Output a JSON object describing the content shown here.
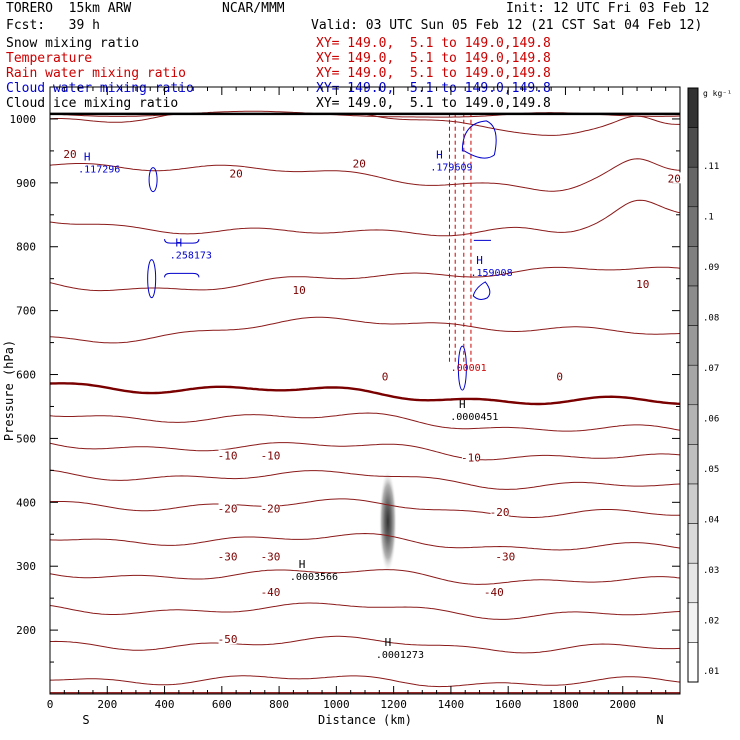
{
  "header": {
    "model": "TORERO  15km ARW",
    "org": "NCAR/MMM",
    "init": "Init: 12 UTC Fri 03 Feb 12",
    "fcst": "Fcst:   39 h",
    "valid": "Valid: 03 UTC Sun 05 Feb 12 (21 CST Sat 04 Feb 12)"
  },
  "fields": [
    {
      "name": "Snow mixing ratio",
      "xy": "",
      "color": "#000000"
    },
    {
      "name": "Temperature",
      "xy": "XY= 149.0,  5.1 to 149.0,149.8",
      "color": "#cc0000"
    },
    {
      "name": "Rain water mixing ratio",
      "xy": "XY= 149.0,  5.1 to 149.0,149.8",
      "color": "#cc0000"
    },
    {
      "name": "Cloud water mixing ratio",
      "xy": "XY= 149.0,  5.1 to 149.0,149.8",
      "color": "#0000cc"
    },
    {
      "name": "Cloud ice mixing ratio",
      "xy": "XY= 149.0,  5.1 to 149.0,149.8",
      "color": "#000000"
    }
  ],
  "xy_range_snow": "XY= 149.0,  5.1 to 149.0,149.8",
  "chart_data": {
    "type": "contour",
    "xlabel": "Distance (km)",
    "ylabel": "Pressure (hPa)",
    "xlim": [
      0,
      2200
    ],
    "ylim": [
      1050,
      100
    ],
    "x_ticks": [
      0,
      200,
      400,
      600,
      800,
      1000,
      1200,
      1400,
      1600,
      1800,
      2000
    ],
    "y_ticks": [
      200,
      300,
      400,
      500,
      600,
      700,
      800,
      900,
      1000
    ],
    "x_end_labels": {
      "left": "S",
      "right": "N"
    },
    "colorbar": {
      "unit": "g kg⁻¹",
      "ticks": [
        ".01",
        ".02",
        ".03",
        ".04",
        ".05",
        ".06",
        ".07",
        ".08",
        ".09",
        ".1",
        ".11"
      ],
      "colors": [
        "#ffffff",
        "#f2f2f2",
        "#e6e6e6",
        "#d9d9d9",
        "#cccccc",
        "#bfbfbf",
        "#b3b3b3",
        "#a6a6a6",
        "#999999",
        "#8c8c8c",
        "#808080",
        "#737373",
        "#666666",
        "#4d4d4d",
        "#333333"
      ]
    },
    "temperature_labels": [
      {
        "t": "-50",
        "x": 620,
        "p": 186
      },
      {
        "t": "-40",
        "x": 770,
        "p": 260
      },
      {
        "t": "-40",
        "x": 1550,
        "p": 260
      },
      {
        "t": "-30",
        "x": 620,
        "p": 315
      },
      {
        "t": "-30",
        "x": 770,
        "p": 315
      },
      {
        "t": "-30",
        "x": 1590,
        "p": 315
      },
      {
        "t": "-20",
        "x": 620,
        "p": 390
      },
      {
        "t": "-20",
        "x": 770,
        "p": 390
      },
      {
        "t": "-20",
        "x": 1570,
        "p": 385
      },
      {
        "t": "-10",
        "x": 620,
        "p": 473
      },
      {
        "t": "-10",
        "x": 770,
        "p": 473
      },
      {
        "t": "-10",
        "x": 1470,
        "p": 470
      },
      {
        "t": "0",
        "x": 1170,
        "p": 597
      },
      {
        "t": "0",
        "x": 1780,
        "p": 597
      },
      {
        "t": "10",
        "x": 870,
        "p": 732
      },
      {
        "t": "10",
        "x": 2070,
        "p": 742
      },
      {
        "t": "20",
        "x": 650,
        "p": 915
      },
      {
        "t": "20",
        "x": 1080,
        "p": 930
      },
      {
        "t": "20",
        "x": 2290,
        "p": 907
      },
      {
        "t": "20",
        "x": 70,
        "p": 945
      }
    ],
    "maxima": [
      {
        "label": "H",
        "value": ".0001273",
        "x": 1180,
        "p": 175,
        "color": "#000000"
      },
      {
        "label": "H",
        "value": ".0003566",
        "x": 880,
        "p": 297,
        "color": "#000000"
      },
      {
        "label": "H",
        "value": ".0000451",
        "x": 1440,
        "p": 548,
        "color": "#000000"
      },
      {
        "label": "",
        "value": ".00001",
        "x": 1420,
        "p": 624,
        "color": "#cc0000"
      },
      {
        "label": "H",
        "value": ".258173",
        "x": 450,
        "p": 800,
        "color": "#0000cc"
      },
      {
        "label": "H",
        "value": ".159008",
        "x": 1500,
        "p": 773,
        "color": "#0000cc"
      },
      {
        "label": "H",
        "value": ".117296",
        "x": 130,
        "p": 935,
        "color": "#0000cc"
      },
      {
        "label": "H",
        "value": ".179609",
        "x": 1360,
        "p": 938,
        "color": "#0000cc"
      }
    ],
    "temperature_contour_levels": [
      -60,
      -55,
      -50,
      -45,
      -40,
      -35,
      -30,
      -25,
      -20,
      -15,
      -10,
      -5,
      0,
      5,
      10,
      15,
      20,
      25
    ],
    "snow_maximum": {
      "x": 1180,
      "p": 370,
      "value_g_kg": 0.11
    }
  }
}
